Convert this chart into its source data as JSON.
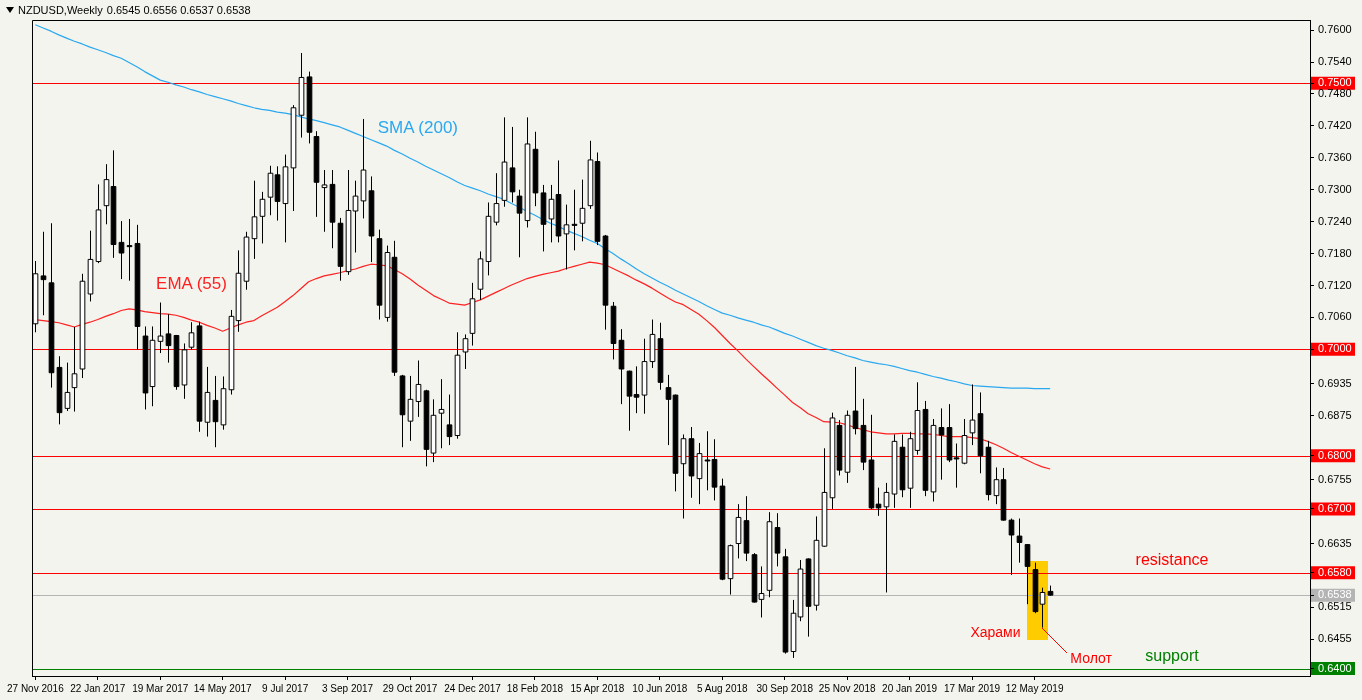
{
  "chart_data": {
    "type": "candlestick",
    "title": "NZDUSD,Weekly",
    "subtitle": "0.6545 0.6556 0.6537 0.6538",
    "colors": [
      "#ffffff",
      "#000000",
      "#000000",
      "#000000",
      "#ffffff",
      "#ffffff",
      "#ffffff",
      "#ffffff",
      "#ffffff",
      "#ffffff",
      "#000000",
      "#000000",
      "#000000",
      "#000000",
      "#000000",
      "#ffffff",
      "#ffffff",
      "#000000",
      "#000000",
      "#ffffff",
      "#ffffff",
      "#000000",
      "#ffffff",
      "#000000",
      "#ffffff",
      "#ffffff",
      "#ffffff",
      "#ffffff",
      "#ffffff",
      "#ffffff",
      "#ffffff",
      "#000000",
      "#ffffff",
      "#ffffff",
      "#ffffff",
      "#000000",
      "#000000",
      "#ffffff",
      "#000000",
      "#000000",
      "#ffffff",
      "#ffffff",
      "#ffffff",
      "#000000",
      "#000000",
      "#ffffff",
      "#000000",
      "#000000",
      "#ffffff",
      "#ffffff",
      "#000000",
      "#ffffff",
      "#ffffff",
      "#000000",
      "#ffffff",
      "#ffffff",
      "#ffffff",
      "#ffffff",
      "#ffffff",
      "#ffffff",
      "#ffffff",
      "#000000",
      "#000000",
      "#ffffff",
      "#000000",
      "#000000",
      "#ffffff",
      "#000000",
      "#ffffff",
      "#000000",
      "#ffffff",
      "#ffffff",
      "#000000",
      "#000000",
      "#000000",
      "#000000",
      "#000000",
      "#000000",
      "#ffffff",
      "#ffffff",
      "#000000",
      "#000000",
      "#000000",
      "#ffffff",
      "#000000",
      "#ffffff",
      "#000000",
      "#000000",
      "#000000",
      "#ffffff",
      "#ffffff",
      "#000000",
      "#000000",
      "#ffffff",
      "#ffffff",
      "#000000",
      "#000000",
      "#ffffff",
      "#ffffff",
      "#000000",
      "#ffffff",
      "#ffffff",
      "#ffffff",
      "#000000",
      "#ffffff",
      "#000000",
      "#000000",
      "#000000",
      "#000000",
      "#ffffff",
      "#ffffff",
      "#000000",
      "#ffffff",
      "#ffffff",
      "#000000",
      "#ffffff",
      "#000000",
      "#000000",
      "#000000",
      "#ffffff",
      "#ffffff",
      "#000000",
      "#000000",
      "#ffffff",
      "#000000",
      "#000000",
      "#000000",
      "#000000",
      "#000000",
      "#ffffff",
      "#000000"
    ],
    "x": [
      "2016-11-27",
      "2016-12-04",
      "2016-12-11",
      "2016-12-18",
      "2016-12-25",
      "2017-01-01",
      "2017-01-08",
      "2017-01-15",
      "2017-01-22",
      "2017-01-29",
      "2017-02-05",
      "2017-02-12",
      "2017-02-19",
      "2017-02-26",
      "2017-03-05",
      "2017-03-12",
      "2017-03-19",
      "2017-03-26",
      "2017-04-02",
      "2017-04-09",
      "2017-04-16",
      "2017-04-23",
      "2017-04-30",
      "2017-05-07",
      "2017-05-14",
      "2017-05-21",
      "2017-05-28",
      "2017-06-04",
      "2017-06-11",
      "2017-06-18",
      "2017-06-25",
      "2017-07-02",
      "2017-07-09",
      "2017-07-16",
      "2017-07-23",
      "2017-07-30",
      "2017-08-06",
      "2017-08-13",
      "2017-08-20",
      "2017-08-27",
      "2017-09-03",
      "2017-09-10",
      "2017-09-17",
      "2017-09-24",
      "2017-10-01",
      "2017-10-08",
      "2017-10-15",
      "2017-10-22",
      "2017-10-29",
      "2017-11-05",
      "2017-11-12",
      "2017-11-19",
      "2017-11-26",
      "2017-12-03",
      "2017-12-10",
      "2017-12-17",
      "2017-12-24",
      "2017-12-31",
      "2018-01-07",
      "2018-01-14",
      "2018-01-21",
      "2018-01-28",
      "2018-02-04",
      "2018-02-11",
      "2018-02-18",
      "2018-02-25",
      "2018-03-04",
      "2018-03-11",
      "2018-03-18",
      "2018-03-25",
      "2018-04-01",
      "2018-04-08",
      "2018-04-15",
      "2018-04-22",
      "2018-04-29",
      "2018-05-06",
      "2018-05-13",
      "2018-05-20",
      "2018-05-27",
      "2018-06-03",
      "2018-06-10",
      "2018-06-17",
      "2018-06-24",
      "2018-07-01",
      "2018-07-08",
      "2018-07-15",
      "2018-07-22",
      "2018-07-29",
      "2018-08-05",
      "2018-08-12",
      "2018-08-19",
      "2018-08-26",
      "2018-09-02",
      "2018-09-09",
      "2018-09-16",
      "2018-09-23",
      "2018-09-30",
      "2018-10-07",
      "2018-10-14",
      "2018-10-21",
      "2018-10-28",
      "2018-11-04",
      "2018-11-11",
      "2018-11-18",
      "2018-11-25",
      "2018-12-02",
      "2018-12-09",
      "2018-12-16",
      "2018-12-23",
      "2018-12-30",
      "2019-01-06",
      "2019-01-13",
      "2019-01-20",
      "2019-01-27",
      "2019-02-03",
      "2019-02-10",
      "2019-02-17",
      "2019-02-24",
      "2019-03-03",
      "2019-03-10",
      "2019-03-17",
      "2019-03-24",
      "2019-03-31",
      "2019-04-07",
      "2019-04-14",
      "2019-04-21",
      "2019-04-28",
      "2019-05-05",
      "2019-05-12",
      "2019-05-19",
      "2019-05-26"
    ],
    "ohlc": [
      [
        0.7048,
        0.7166,
        0.7032,
        0.7142
      ],
      [
        0.7138,
        0.7221,
        0.7064,
        0.7131
      ],
      [
        0.7125,
        0.7237,
        0.6928,
        0.6956
      ],
      [
        0.6966,
        0.6987,
        0.6859,
        0.6881
      ],
      [
        0.6889,
        0.6975,
        0.6884,
        0.6919
      ],
      [
        0.6928,
        0.7042,
        0.6883,
        0.6954
      ],
      [
        0.6963,
        0.7142,
        0.6946,
        0.7128
      ],
      [
        0.7104,
        0.7223,
        0.709,
        0.7169
      ],
      [
        0.7165,
        0.731,
        0.7162,
        0.7262
      ],
      [
        0.727,
        0.7348,
        0.7235,
        0.7319
      ],
      [
        0.7306,
        0.7374,
        0.7172,
        0.7197
      ],
      [
        0.7201,
        0.7241,
        0.7132,
        0.7181
      ],
      [
        0.7195,
        0.7245,
        0.7129,
        0.7193
      ],
      [
        0.7199,
        0.7234,
        0.6999,
        0.7043
      ],
      [
        0.7025,
        0.7043,
        0.6887,
        0.6918
      ],
      [
        0.693,
        0.7043,
        0.6893,
        0.7017
      ],
      [
        0.7015,
        0.7088,
        0.6993,
        0.7025
      ],
      [
        0.7029,
        0.7066,
        0.6975,
        0.7007
      ],
      [
        0.7026,
        0.7027,
        0.6924,
        0.693
      ],
      [
        0.6933,
        0.7011,
        0.6907,
        0.6999
      ],
      [
        0.7004,
        0.7051,
        0.6999,
        0.7031
      ],
      [
        0.7044,
        0.7052,
        0.6845,
        0.6865
      ],
      [
        0.6863,
        0.6967,
        0.6836,
        0.6919
      ],
      [
        0.6904,
        0.695,
        0.6816,
        0.6864
      ],
      [
        0.6858,
        0.6949,
        0.6849,
        0.6926
      ],
      [
        0.6924,
        0.7074,
        0.6915,
        0.7062
      ],
      [
        0.7054,
        0.7186,
        0.7033,
        0.7143
      ],
      [
        0.7128,
        0.7221,
        0.7112,
        0.7211
      ],
      [
        0.7208,
        0.7317,
        0.717,
        0.7249
      ],
      [
        0.725,
        0.7296,
        0.7199,
        0.7282
      ],
      [
        0.7286,
        0.7345,
        0.7252,
        0.7331
      ],
      [
        0.7328,
        0.7344,
        0.7242,
        0.7278
      ],
      [
        0.7274,
        0.7366,
        0.7201,
        0.7343
      ],
      [
        0.7341,
        0.7459,
        0.726,
        0.7454
      ],
      [
        0.744,
        0.7557,
        0.7398,
        0.7511
      ],
      [
        0.7512,
        0.7522,
        0.7387,
        0.7408
      ],
      [
        0.74,
        0.741,
        0.7249,
        0.7314
      ],
      [
        0.7304,
        0.7337,
        0.7221,
        0.7309
      ],
      [
        0.731,
        0.7337,
        0.719,
        0.7239
      ],
      [
        0.7237,
        0.7247,
        0.7129,
        0.7156
      ],
      [
        0.7146,
        0.7337,
        0.714,
        0.7261
      ],
      [
        0.726,
        0.7317,
        0.7182,
        0.7288
      ],
      [
        0.7279,
        0.7433,
        0.7246,
        0.7337
      ],
      [
        0.7298,
        0.7325,
        0.7164,
        0.7213
      ],
      [
        0.7208,
        0.7225,
        0.7056,
        0.7083
      ],
      [
        0.706,
        0.7195,
        0.7052,
        0.7182
      ],
      [
        0.7173,
        0.7204,
        0.695,
        0.6957
      ],
      [
        0.695,
        0.6952,
        0.6816,
        0.6877
      ],
      [
        0.6865,
        0.695,
        0.6828,
        0.6906
      ],
      [
        0.6902,
        0.6979,
        0.6873,
        0.6934
      ],
      [
        0.6922,
        0.6924,
        0.678,
        0.6812
      ],
      [
        0.6805,
        0.6906,
        0.6788,
        0.6876
      ],
      [
        0.688,
        0.6944,
        0.6814,
        0.6887
      ],
      [
        0.6858,
        0.6915,
        0.682,
        0.6836
      ],
      [
        0.6838,
        0.7032,
        0.6832,
        0.6989
      ],
      [
        0.6995,
        0.7028,
        0.6963,
        0.702
      ],
      [
        0.703,
        0.7125,
        0.7007,
        0.7095
      ],
      [
        0.7113,
        0.7184,
        0.7093,
        0.717
      ],
      [
        0.7165,
        0.7276,
        0.7139,
        0.725
      ],
      [
        0.7239,
        0.7331,
        0.7233,
        0.7274
      ],
      [
        0.728,
        0.7436,
        0.7268,
        0.7352
      ],
      [
        0.7341,
        0.7418,
        0.7276,
        0.7296
      ],
      [
        0.7288,
        0.73,
        0.7173,
        0.7256
      ],
      [
        0.7242,
        0.7436,
        0.7229,
        0.7386
      ],
      [
        0.7376,
        0.7409,
        0.7269,
        0.7294
      ],
      [
        0.7294,
        0.7309,
        0.7184,
        0.7235
      ],
      [
        0.7245,
        0.7309,
        0.7201,
        0.7282
      ],
      [
        0.7291,
        0.7355,
        0.7201,
        0.7213
      ],
      [
        0.7217,
        0.7272,
        0.715,
        0.7234
      ],
      [
        0.7235,
        0.73,
        0.7186,
        0.7233
      ],
      [
        0.7237,
        0.7319,
        0.7203,
        0.7265
      ],
      [
        0.727,
        0.7392,
        0.7264,
        0.7356
      ],
      [
        0.7353,
        0.737,
        0.7196,
        0.7203
      ],
      [
        0.7213,
        0.7215,
        0.7037,
        0.7083
      ],
      [
        0.7081,
        0.7089,
        0.6981,
        0.7011
      ],
      [
        0.7017,
        0.7038,
        0.6897,
        0.6963
      ],
      [
        0.6959,
        0.696,
        0.6847,
        0.6912
      ],
      [
        0.6915,
        0.6968,
        0.688,
        0.691
      ],
      [
        0.6914,
        0.702,
        0.6879,
        0.6977
      ],
      [
        0.6977,
        0.7056,
        0.6965,
        0.7028
      ],
      [
        0.702,
        0.705,
        0.6924,
        0.6938
      ],
      [
        0.6928,
        0.6952,
        0.682,
        0.6906
      ],
      [
        0.6914,
        0.6915,
        0.6733,
        0.6767
      ],
      [
        0.6785,
        0.684,
        0.6682,
        0.6832
      ],
      [
        0.6832,
        0.6854,
        0.6721,
        0.6762
      ],
      [
        0.6757,
        0.6824,
        0.6709,
        0.6804
      ],
      [
        0.6792,
        0.6846,
        0.6735,
        0.6791
      ],
      [
        0.6793,
        0.6831,
        0.6716,
        0.6741
      ],
      [
        0.6743,
        0.6757,
        0.6566,
        0.6568
      ],
      [
        0.6569,
        0.6633,
        0.6539,
        0.6631
      ],
      [
        0.6635,
        0.6709,
        0.6607,
        0.6684
      ],
      [
        0.6678,
        0.6724,
        0.6602,
        0.6617
      ],
      [
        0.6614,
        0.6617,
        0.6524,
        0.6525
      ],
      [
        0.653,
        0.6592,
        0.6496,
        0.6541
      ],
      [
        0.6547,
        0.6694,
        0.6534,
        0.6676
      ],
      [
        0.6665,
        0.6692,
        0.6592,
        0.6617
      ],
      [
        0.661,
        0.6625,
        0.6428,
        0.6431
      ],
      [
        0.6432,
        0.6529,
        0.642,
        0.6504
      ],
      [
        0.6497,
        0.6604,
        0.6489,
        0.6587
      ],
      [
        0.6606,
        0.6607,
        0.646,
        0.6517
      ],
      [
        0.6519,
        0.6686,
        0.6509,
        0.6641
      ],
      [
        0.663,
        0.6814,
        0.6629,
        0.6731
      ],
      [
        0.6721,
        0.6881,
        0.67,
        0.6871
      ],
      [
        0.6857,
        0.6867,
        0.6763,
        0.6773
      ],
      [
        0.6769,
        0.6885,
        0.6749,
        0.6876
      ],
      [
        0.6884,
        0.6967,
        0.684,
        0.6851
      ],
      [
        0.6857,
        0.6907,
        0.6773,
        0.6788
      ],
      [
        0.6792,
        0.6877,
        0.67,
        0.6702
      ],
      [
        0.6709,
        0.674,
        0.6687,
        0.6702
      ],
      [
        0.6704,
        0.6749,
        0.6543,
        0.6731
      ],
      [
        0.6728,
        0.684,
        0.6702,
        0.6827
      ],
      [
        0.6816,
        0.684,
        0.6722,
        0.6736
      ],
      [
        0.6739,
        0.6845,
        0.6702,
        0.6832
      ],
      [
        0.681,
        0.6938,
        0.6802,
        0.6885
      ],
      [
        0.6887,
        0.6903,
        0.6724,
        0.6735
      ],
      [
        0.6732,
        0.6869,
        0.6714,
        0.6857
      ],
      [
        0.6853,
        0.6889,
        0.6755,
        0.6839
      ],
      [
        0.6853,
        0.6897,
        0.6788,
        0.6792
      ],
      [
        0.6796,
        0.6823,
        0.674,
        0.6794
      ],
      [
        0.6786,
        0.6869,
        0.6784,
        0.6838
      ],
      [
        0.6843,
        0.6934,
        0.682,
        0.6867
      ],
      [
        0.6879,
        0.6919,
        0.6767,
        0.68
      ],
      [
        0.6816,
        0.6828,
        0.6716,
        0.6727
      ],
      [
        0.6725,
        0.6778,
        0.6709,
        0.6755
      ],
      [
        0.6755,
        0.6777,
        0.6678,
        0.6679
      ],
      [
        0.6679,
        0.6682,
        0.6576,
        0.6651
      ],
      [
        0.6649,
        0.6682,
        0.6599,
        0.6637
      ],
      [
        0.6633,
        0.6633,
        0.6521,
        0.6592
      ],
      [
        0.6586,
        0.6599,
        0.6504,
        0.6507
      ],
      [
        0.6521,
        0.6552,
        0.6477,
        0.6543
      ],
      [
        0.6545,
        0.6556,
        0.6537,
        0.6538
      ]
    ],
    "series": [
      {
        "type": "line",
        "name": "SMA (200)",
        "color": "#29a8f0",
        "values": [
          0.761,
          0.7604,
          0.7598,
          0.7591,
          0.7585,
          0.7579,
          0.7574,
          0.7568,
          0.7563,
          0.7558,
          0.7552,
          0.7547,
          0.7539,
          0.7531,
          0.7522,
          0.7514,
          0.7506,
          0.7502,
          0.7497,
          0.7493,
          0.7488,
          0.7484,
          0.7479,
          0.7475,
          0.7471,
          0.7467,
          0.7462,
          0.7458,
          0.7454,
          0.7451,
          0.7449,
          0.7446,
          0.7444,
          0.7441,
          0.7437,
          0.7433,
          0.743,
          0.7426,
          0.7422,
          0.7418,
          0.7412,
          0.7406,
          0.74,
          0.7394,
          0.7388,
          0.7382,
          0.7374,
          0.7367,
          0.7359,
          0.7352,
          0.7344,
          0.7337,
          0.733,
          0.7323,
          0.7315,
          0.7308,
          0.7303,
          0.7298,
          0.7292,
          0.7287,
          0.7282,
          0.7274,
          0.7267,
          0.7259,
          0.7252,
          0.7244,
          0.7237,
          0.7231,
          0.7224,
          0.7218,
          0.7212,
          0.7205,
          0.7199,
          0.7189,
          0.718,
          0.717,
          0.7161,
          0.7151,
          0.7142,
          0.7134,
          0.7126,
          0.7119,
          0.7111,
          0.7104,
          0.7097,
          0.709,
          0.7082,
          0.7075,
          0.7068,
          0.7064,
          0.7059,
          0.7055,
          0.7051,
          0.7046,
          0.7042,
          0.7036,
          0.703,
          0.7025,
          0.7019,
          0.7013,
          0.7007,
          0.7002,
          0.6998,
          0.6993,
          0.6988,
          0.6984,
          0.6979,
          0.6976,
          0.6973,
          0.6971,
          0.6968,
          0.6964,
          0.696,
          0.6957,
          0.6953,
          0.6949,
          0.6946,
          0.6942,
          0.6939,
          0.6935,
          0.6932,
          0.6931,
          0.693,
          0.6929,
          0.6928,
          0.6927,
          0.6927,
          0.6927,
          0.6926,
          0.6926,
          0.6926
        ]
      },
      {
        "type": "line",
        "name": "EMA (55)",
        "color": "#ff2020",
        "values": [
          0.7056,
          0.7054,
          0.7052,
          0.705,
          0.7046,
          0.7042,
          0.7047,
          0.7051,
          0.7056,
          0.7062,
          0.7067,
          0.7073,
          0.7076,
          0.7074,
          0.7071,
          0.7069,
          0.7067,
          0.7066,
          0.7064,
          0.706,
          0.7055,
          0.7051,
          0.7045,
          0.704,
          0.7034,
          0.704,
          0.7046,
          0.7051,
          0.7054,
          0.7063,
          0.7071,
          0.7079,
          0.709,
          0.7101,
          0.7114,
          0.7127,
          0.7133,
          0.7138,
          0.7141,
          0.7144,
          0.7148,
          0.7151,
          0.7156,
          0.716,
          0.7159,
          0.7157,
          0.715,
          0.7142,
          0.7132,
          0.7121,
          0.7111,
          0.7101,
          0.7094,
          0.7087,
          0.7085,
          0.7083,
          0.7088,
          0.7093,
          0.71,
          0.7107,
          0.7114,
          0.7121,
          0.7127,
          0.7133,
          0.7137,
          0.7141,
          0.7144,
          0.7147,
          0.7152,
          0.7156,
          0.716,
          0.7164,
          0.7162,
          0.7159,
          0.7152,
          0.7145,
          0.7138,
          0.713,
          0.7123,
          0.7115,
          0.7106,
          0.7097,
          0.7089,
          0.7084,
          0.7075,
          0.7066,
          0.7054,
          0.7041,
          0.7026,
          0.7011,
          0.6997,
          0.6982,
          0.6968,
          0.6954,
          0.6941,
          0.6927,
          0.6914,
          0.69,
          0.689,
          0.6879,
          0.6872,
          0.6864,
          0.6863,
          0.6862,
          0.6858,
          0.6853,
          0.6849,
          0.6845,
          0.6843,
          0.6841,
          0.6841,
          0.6842,
          0.6842,
          0.6841,
          0.6841,
          0.684,
          0.6838,
          0.6836,
          0.6836,
          0.6836,
          0.6834,
          0.6832,
          0.6827,
          0.6821,
          0.6814,
          0.6806,
          0.6799,
          0.6792,
          0.6785,
          0.6779,
          0.6775
        ]
      }
    ],
    "xlim": [
      "2016-11-24",
      "2020-01-14"
    ],
    "xticks": [
      {
        "value": "2016-11-27",
        "label": "27 Nov 2016"
      },
      {
        "value": "2017-01-22",
        "label": "22 Jan 2017"
      },
      {
        "value": "2017-03-19",
        "label": "19 Mar 2017"
      },
      {
        "value": "2017-05-14",
        "label": "14 May 2017"
      },
      {
        "value": "2017-07-09",
        "label": "9 Jul 2017"
      },
      {
        "value": "2017-09-03",
        "label": "3 Sep 2017"
      },
      {
        "value": "2017-10-29",
        "label": "29 Oct 2017"
      },
      {
        "value": "2017-12-24",
        "label": "24 Dec 2017"
      },
      {
        "value": "2018-02-18",
        "label": "18 Feb 2018"
      },
      {
        "value": "2018-04-15",
        "label": "15 Apr 2018"
      },
      {
        "value": "2018-06-10",
        "label": "10 Jun 2018"
      },
      {
        "value": "2018-08-05",
        "label": "5 Aug 2018"
      },
      {
        "value": "2018-09-30",
        "label": "30 Sep 2018"
      },
      {
        "value": "2018-11-25",
        "label": "25 Nov 2018"
      },
      {
        "value": "2019-01-20",
        "label": "20 Jan 2019"
      },
      {
        "value": "2019-03-17",
        "label": "17 Mar 2019"
      },
      {
        "value": "2019-05-12",
        "label": "12 May 2019"
      }
    ],
    "ylim": [
      0.6386,
      0.7619
    ],
    "yticks": [
      {
        "value": 0.75,
        "label": "0.7500"
      },
      {
        "value": 0.7,
        "label": "0.7000"
      },
      {
        "value": 0.68,
        "label": "0.6800"
      },
      {
        "value": 0.67,
        "label": "0.6700"
      },
      {
        "value": 0.658,
        "label": "0.6580"
      },
      {
        "value": 0.6538,
        "label": "0.6538"
      },
      {
        "value": 0.64,
        "label": "0.6400"
      },
      {
        "value": 0.76,
        "label": "0.7600"
      },
      {
        "value": 0.754,
        "label": "0.7540"
      },
      {
        "value": 0.748,
        "label": "0.7480"
      },
      {
        "value": 0.742,
        "label": "0.7420"
      },
      {
        "value": 0.736,
        "label": "0.7360"
      },
      {
        "value": 0.73,
        "label": "0.7300"
      },
      {
        "value": 0.724,
        "label": "0.7240"
      },
      {
        "value": 0.718,
        "label": "0.7180"
      },
      {
        "value": 0.712,
        "label": "0.7120"
      },
      {
        "value": 0.706,
        "label": "0.7060"
      },
      {
        "value": 0.6935,
        "label": "0.6935"
      },
      {
        "value": 0.6875,
        "label": "0.6875"
      },
      {
        "value": 0.6755,
        "label": "0.6755"
      },
      {
        "value": 0.6635,
        "label": "0.6635"
      },
      {
        "value": 0.6515,
        "label": "0.6515"
      },
      {
        "value": 0.6455,
        "label": "0.6455"
      }
    ],
    "ref_lines": [
      {
        "axis": "y",
        "value": 0.75,
        "color": "#ff0000"
      },
      {
        "axis": "y",
        "value": 0.7,
        "color": "#ff0000"
      },
      {
        "axis": "y",
        "value": 0.68,
        "color": "#ff0000"
      },
      {
        "axis": "y",
        "value": 0.67,
        "color": "#ff0000"
      },
      {
        "axis": "y",
        "value": 0.658,
        "color": "#ff0000",
        "label": "resistance"
      },
      {
        "axis": "y",
        "value": 0.6538,
        "color": "#b4b4b4"
      },
      {
        "axis": "y",
        "value": 0.64,
        "color": "#008000",
        "label": "support"
      }
    ],
    "annotations": [
      "Харами",
      "Молот"
    ]
  }
}
